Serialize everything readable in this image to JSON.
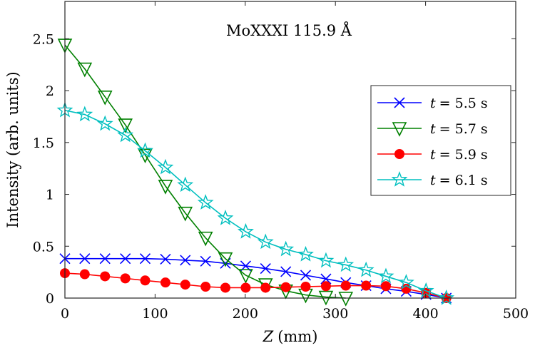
{
  "chart_data": {
    "type": "line",
    "title": "MoXXXI 115.9 Å",
    "xlabel_var": "Z",
    "xlabel_unit": "(mm)",
    "ylabel": "Intensity (arb. units)",
    "xlim": [
      0,
      500
    ],
    "ylim": [
      0,
      2.86
    ],
    "xticks": [
      0,
      100,
      200,
      300,
      400,
      500
    ],
    "yticks": [
      0,
      0.5,
      1,
      1.5,
      2,
      2.5
    ],
    "xtick_labels": [
      "0",
      "100",
      "200",
      "300",
      "400",
      "500"
    ],
    "ytick_labels": [
      "0",
      "0.5",
      "1",
      "1.5",
      "2",
      "2.5"
    ],
    "grid": false,
    "legend_position": "right",
    "x": [
      0,
      22,
      44.5,
      67,
      89,
      111.5,
      133.5,
      156,
      178,
      200.5,
      222.5,
      245,
      267,
      289.5,
      311.5,
      334,
      356,
      378.5,
      400.5,
      423
    ],
    "series": [
      {
        "name": "t = 5.5 s",
        "legend_var": "t",
        "legend_value": "= 5.5 s",
        "marker": "x",
        "color": "#0000ff",
        "values": [
          0.38,
          0.38,
          0.38,
          0.38,
          0.38,
          0.375,
          0.365,
          0.355,
          0.335,
          0.31,
          0.285,
          0.255,
          0.22,
          0.185,
          0.15,
          0.12,
          0.09,
          0.065,
          0.035,
          0.0
        ]
      },
      {
        "name": "t = 5.7 s",
        "legend_var": "t",
        "legend_value": "= 5.7 s",
        "marker": "triangle-down",
        "color": "#008000",
        "values": [
          2.44,
          2.21,
          1.94,
          1.67,
          1.38,
          1.08,
          0.82,
          0.58,
          0.38,
          0.22,
          0.13,
          0.07,
          0.03,
          0.01,
          0.0,
          null,
          null,
          null,
          null,
          null
        ]
      },
      {
        "name": "t = 5.9 s",
        "legend_var": "t",
        "legend_value": "= 5.9 s",
        "marker": "circle",
        "color": "#ff0000",
        "values": [
          0.24,
          0.23,
          0.21,
          0.19,
          0.17,
          0.15,
          0.13,
          0.11,
          0.1,
          0.1,
          0.1,
          0.105,
          0.11,
          0.115,
          0.12,
          0.12,
          0.115,
          0.09,
          0.05,
          0.0
        ]
      },
      {
        "name": "t = 6.1 s",
        "legend_var": "t",
        "legend_value": "= 6.1 s",
        "marker": "star",
        "color": "#00bfbf",
        "values": [
          1.81,
          1.77,
          1.68,
          1.57,
          1.42,
          1.26,
          1.09,
          0.92,
          0.77,
          0.64,
          0.54,
          0.47,
          0.42,
          0.36,
          0.32,
          0.27,
          0.21,
          0.15,
          0.07,
          0.0
        ]
      }
    ]
  }
}
